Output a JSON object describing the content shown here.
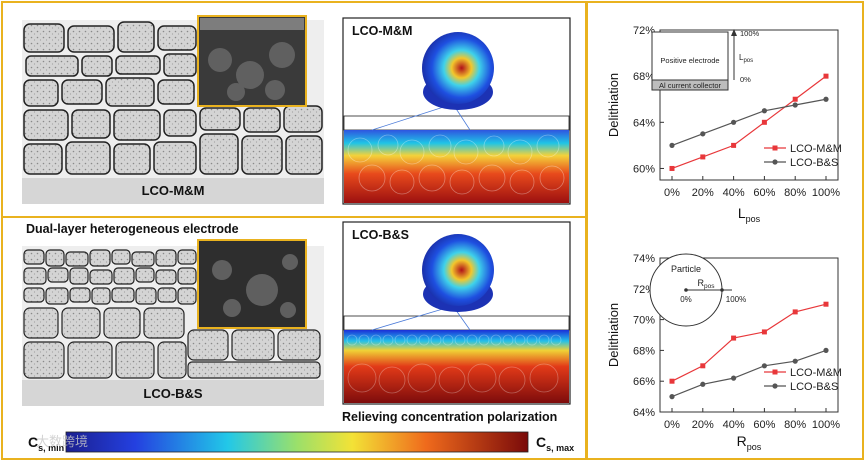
{
  "panels": {
    "top_label": "LCO-M&M",
    "mid_label": "Dual-layer heterogeneous electrode",
    "bottom_label": "LCO-B&S",
    "sim_top_label": "LCO-M&M",
    "sim_bottom_label": "LCO-B&S",
    "relieving": "Relieving concentration polarization"
  },
  "colorbar": {
    "min_main": "C",
    "min_sub": "s, min",
    "max_main": "C",
    "max_sub": "s, max",
    "watermark": "大数跨境"
  },
  "chart_data": [
    {
      "type": "line",
      "x": [
        "0%",
        "20%",
        "40%",
        "60%",
        "80%",
        "100%"
      ],
      "xlabel_main": "L",
      "xlabel_sub": "pos",
      "ylabel": "Delithiation",
      "yticks": [
        "60%",
        "64%",
        "68%",
        "72%"
      ],
      "ylim": [
        59,
        72
      ],
      "series": [
        {
          "name": "LCO-M&M",
          "color": "#e8373a",
          "values": [
            60,
            61,
            62,
            64,
            66,
            68
          ]
        },
        {
          "name": "LCO-B&S",
          "color": "#555555",
          "values": [
            62,
            63,
            64,
            65,
            65.5,
            66
          ]
        }
      ],
      "inset": {
        "box_label": "Positive electrode",
        "collector_label": "Al current collector",
        "top_tick": "100%",
        "bottom_tick": "0%",
        "axis_main": "L",
        "axis_sub": "pos"
      }
    },
    {
      "type": "line",
      "x": [
        "0%",
        "20%",
        "40%",
        "60%",
        "80%",
        "100%"
      ],
      "xlabel_main": "R",
      "xlabel_sub": "pos",
      "ylabel": "Delithiation",
      "yticks": [
        "64%",
        "66%",
        "68%",
        "70%",
        "72%",
        "74%"
      ],
      "ylim": [
        64,
        74
      ],
      "series": [
        {
          "name": "LCO-M&M",
          "color": "#e8373a",
          "values": [
            66,
            67,
            68.8,
            69.2,
            70.5,
            71
          ]
        },
        {
          "name": "LCO-B&S",
          "color": "#555555",
          "values": [
            65,
            65.8,
            66.2,
            67,
            67.3,
            68
          ]
        }
      ],
      "inset": {
        "title": "Particle",
        "axis_main": "R",
        "axis_sub": "pos",
        "left_tick": "0%",
        "right_tick": "100%"
      }
    }
  ]
}
